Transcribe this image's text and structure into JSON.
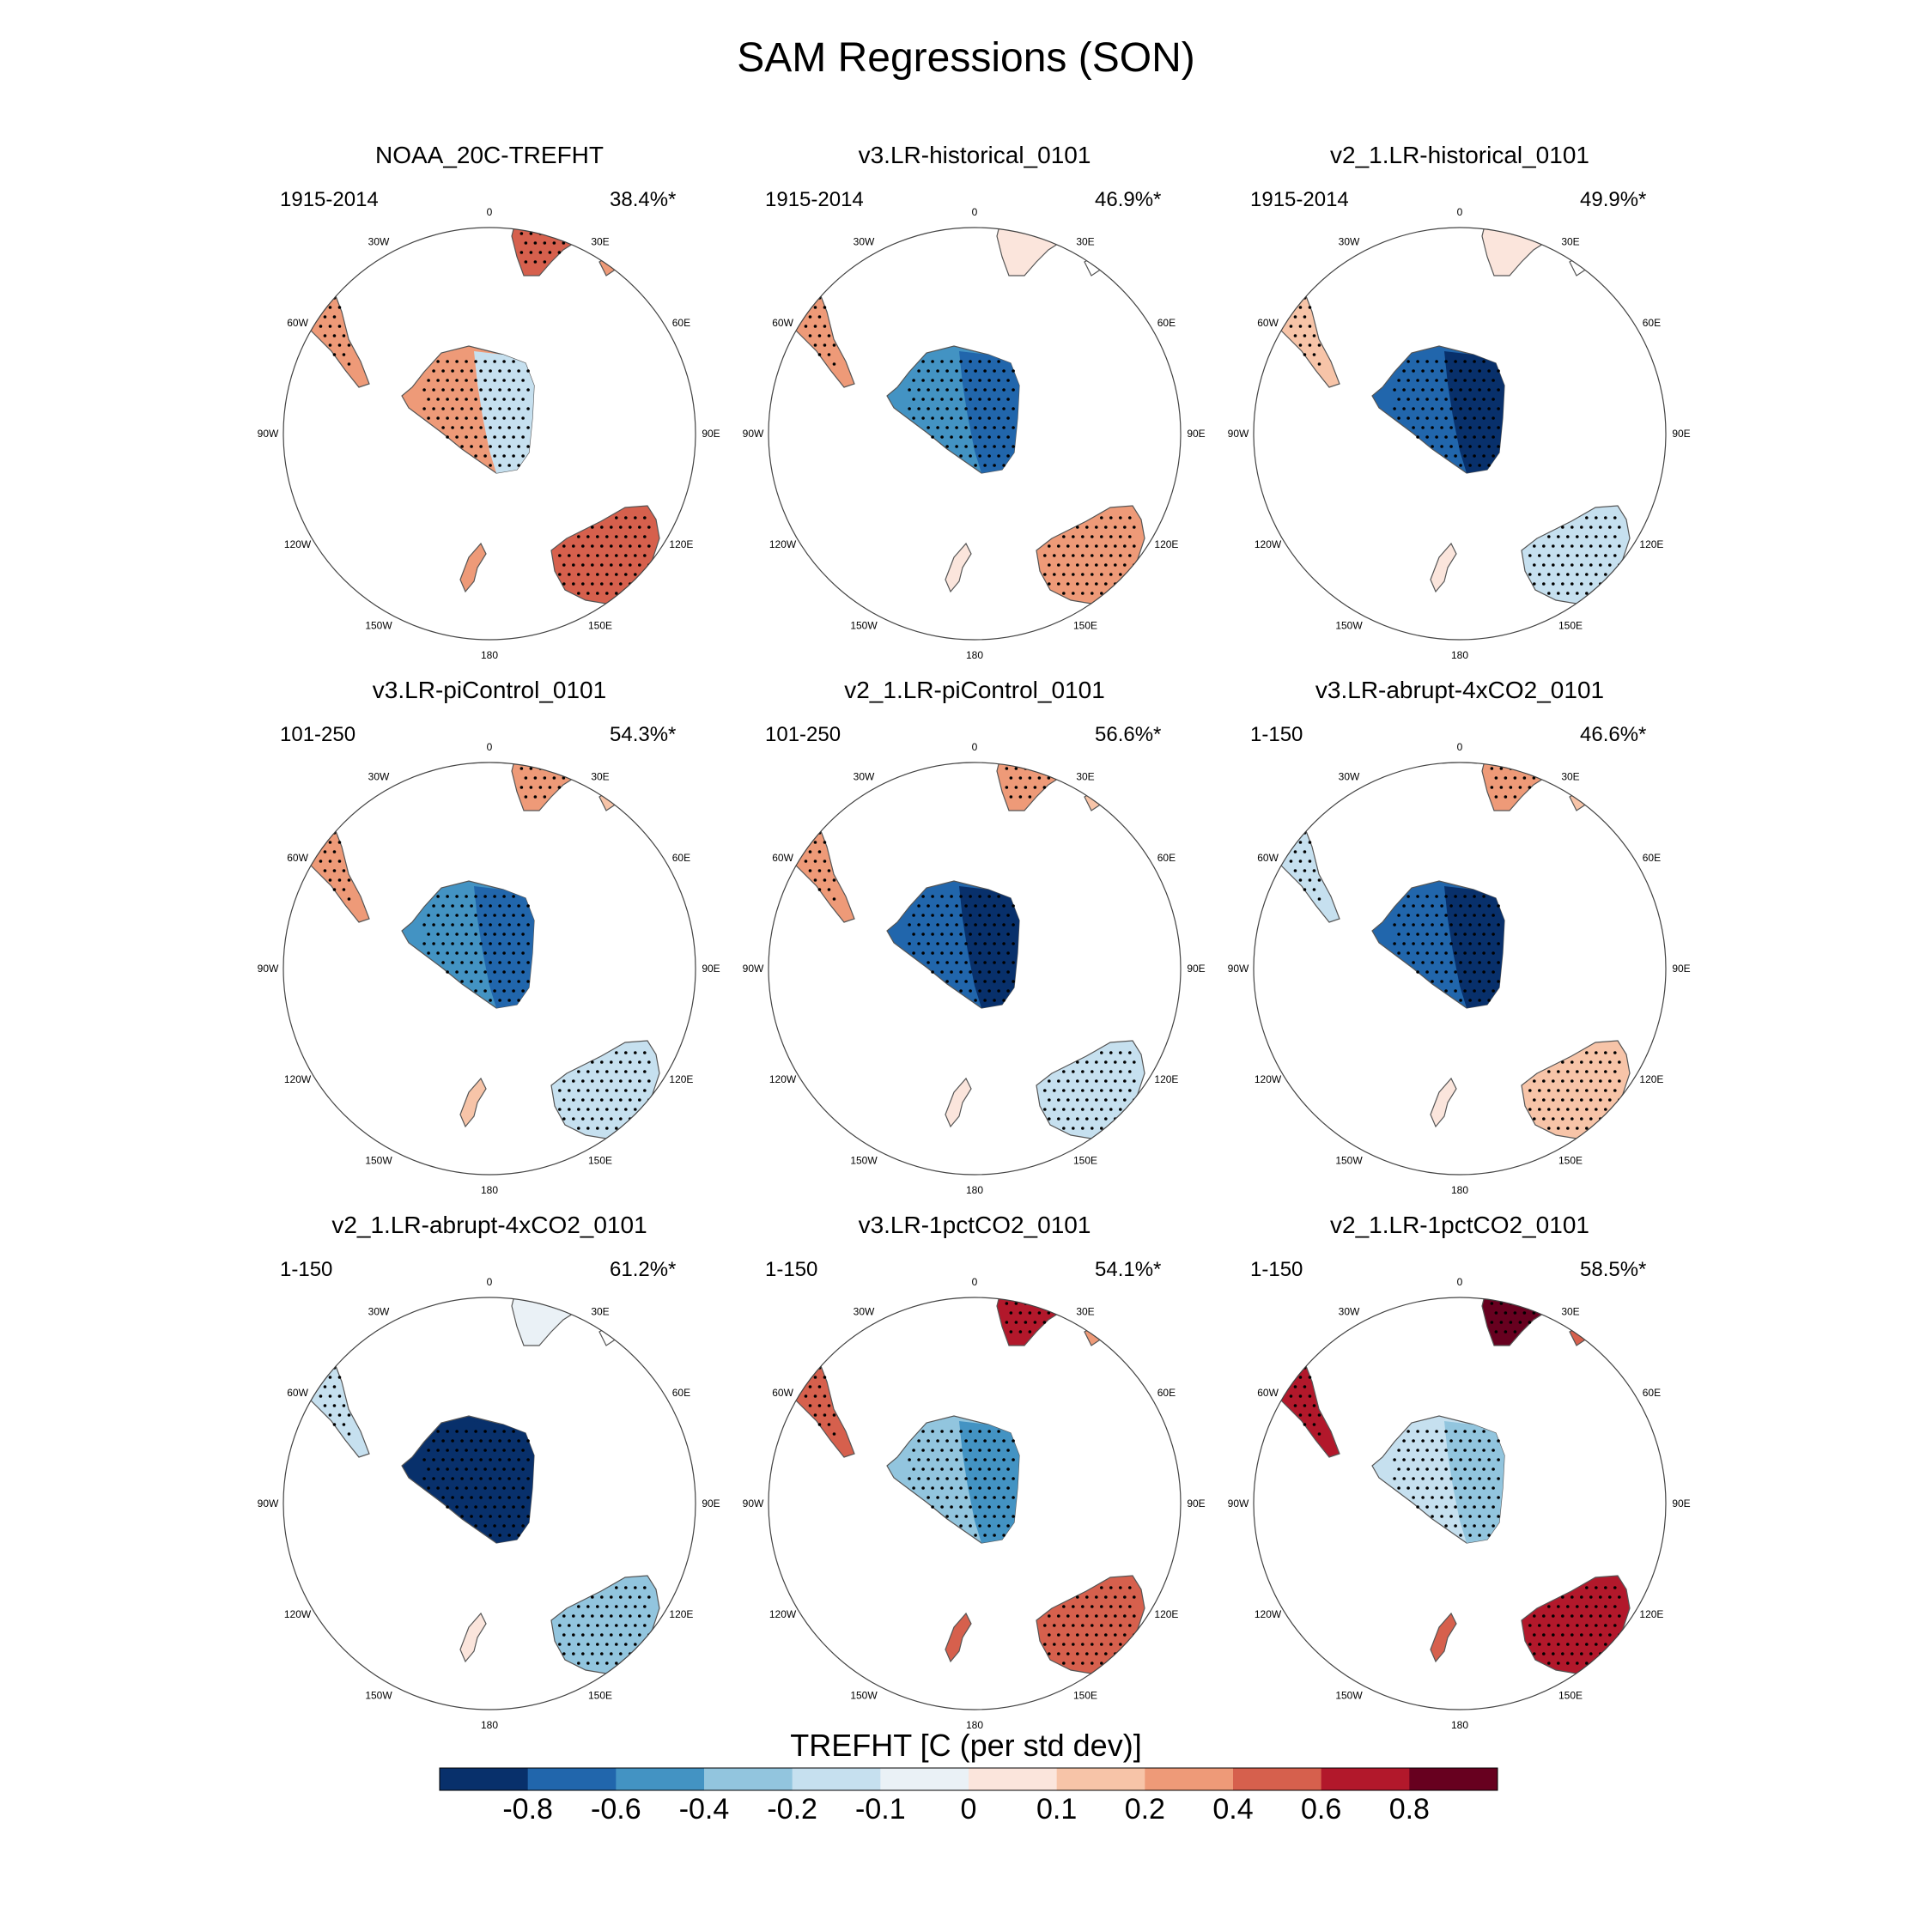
{
  "chart_data": {
    "type": "map",
    "title": "SAM Regressions (SON)",
    "projection": "south polar stereographic",
    "longitude_labels": [
      "0",
      "30E",
      "60E",
      "90E",
      "120E",
      "150E",
      "180",
      "150W",
      "120W",
      "90W",
      "60W",
      "30W"
    ],
    "colorbar": {
      "title": "TREFHT [C (per std dev)]",
      "tick_labels": [
        "-0.8",
        "-0.6",
        "-0.4",
        "-0.2",
        "-0.1",
        "0",
        "0.1",
        "0.2",
        "0.4",
        "0.6",
        "0.8"
      ],
      "colors": [
        "#08306b",
        "#2166ac",
        "#4393c3",
        "#92c5de",
        "#c6e0ef",
        "#eaf1f6",
        "#fbe5dc",
        "#f7c4a8",
        "#ee9a78",
        "#d6604d",
        "#b2182b",
        "#67001f"
      ]
    },
    "panels": [
      {
        "title": "NOAA_20C-TREFHT",
        "years": "1915-2014",
        "percent": "38.4%*",
        "fields": {
          "antarctica": 0.3,
          "antarctica_east": -0.2,
          "south_america": 0.25,
          "africa": 0.45,
          "australia": 0.4,
          "new_zealand": 0.2
        }
      },
      {
        "title": "v3.LR-historical_0101",
        "years": "1915-2014",
        "percent": "46.9%*",
        "fields": {
          "antarctica": -0.5,
          "antarctica_east": -0.75,
          "south_america": 0.2,
          "africa": 0.05,
          "australia": 0.25,
          "new_zealand": 0.0
        }
      },
      {
        "title": "v2_1.LR-historical_0101",
        "years": "1915-2014",
        "percent": "49.9%*",
        "fields": {
          "antarctica": -0.7,
          "antarctica_east": -0.85,
          "south_america": 0.15,
          "africa": 0.05,
          "australia": -0.15,
          "new_zealand": 0.0
        }
      },
      {
        "title": "v3.LR-piControl_0101",
        "years": "101-250",
        "percent": "54.3%*",
        "fields": {
          "antarctica": -0.55,
          "antarctica_east": -0.8,
          "south_america": 0.2,
          "africa": 0.3,
          "australia": -0.2,
          "new_zealand": 0.15
        }
      },
      {
        "title": "v2_1.LR-piControl_0101",
        "years": "101-250",
        "percent": "56.6%*",
        "fields": {
          "antarctica": -0.65,
          "antarctica_east": -0.85,
          "south_america": 0.25,
          "africa": 0.25,
          "australia": -0.15,
          "new_zealand": 0.0
        }
      },
      {
        "title": "v3.LR-abrupt-4xCO2_0101",
        "years": "1-150",
        "percent": "46.6%*",
        "fields": {
          "antarctica": -0.7,
          "antarctica_east": -0.85,
          "south_america": -0.15,
          "africa": 0.3,
          "australia": 0.15,
          "new_zealand": 0.05
        }
      },
      {
        "title": "v2_1.LR-abrupt-4xCO2_0101",
        "years": "1-150",
        "percent": "61.2%*",
        "fields": {
          "antarctica": -0.85,
          "antarctica_east": -0.9,
          "south_america": -0.15,
          "africa": -0.1,
          "australia": -0.3,
          "new_zealand": 0.0
        }
      },
      {
        "title": "v3.LR-1pctCO2_0101",
        "years": "1-150",
        "percent": "54.1%*",
        "fields": {
          "antarctica": -0.3,
          "antarctica_east": -0.45,
          "south_america": 0.5,
          "africa": 0.65,
          "australia": 0.5,
          "new_zealand": 0.5
        }
      },
      {
        "title": "v2_1.LR-1pctCO2_0101",
        "years": "1-150",
        "percent": "58.5%*",
        "fields": {
          "antarctica": -0.2,
          "antarctica_east": -0.35,
          "south_america": 0.6,
          "africa": 0.8,
          "australia": 0.6,
          "new_zealand": 0.5
        }
      }
    ]
  }
}
